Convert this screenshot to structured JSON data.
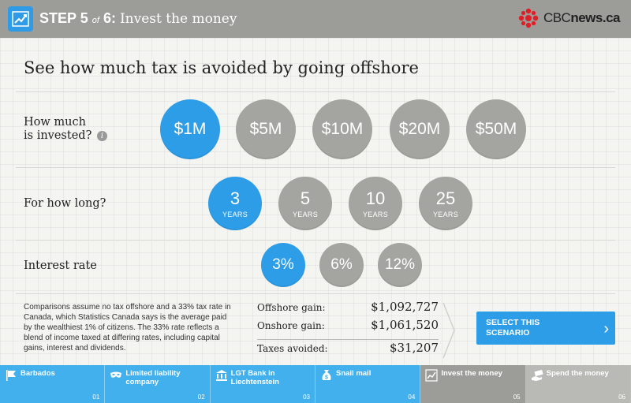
{
  "header": {
    "step_word": "STEP",
    "step_current": "5",
    "step_of": "of",
    "step_total": "6:",
    "step_desc": "Invest the money",
    "brand_bold": "CBC",
    "brand_rest": "news.ca"
  },
  "headline": "See how much tax is avoided by going offshore",
  "invested": {
    "label_line1": "How much",
    "label_line2": "is invested?",
    "info": "i",
    "options": [
      "$1M",
      "$5M",
      "$10M",
      "$20M",
      "$50M"
    ],
    "selected": "$1M"
  },
  "duration": {
    "label": "For how long?",
    "unit": "YEARS",
    "options": [
      "3",
      "5",
      "10",
      "25"
    ],
    "selected": "3"
  },
  "interest": {
    "label": "Interest rate",
    "options": [
      "3%",
      "6%",
      "12%"
    ],
    "selected": "3%"
  },
  "note": "Comparisons assume no tax offshore and a 33% tax rate in Canada, which Statistics Canada says is the average paid by the wealthiest 1% of citizens. The 33% rate reflects a blend of income taxed at differing rates, including capital gains, interest and dividends.",
  "results": {
    "offshore_label": "Offshore gain:",
    "offshore_value": "$1,092,727",
    "onshore_label": "Onshore gain:",
    "onshore_value": "$1,061,520",
    "avoided_label": "Taxes avoided:",
    "avoided_value": "$31,207"
  },
  "select_button": {
    "label": "SELECT THIS SCENARIO",
    "arrow": "›"
  },
  "nav": [
    {
      "label": "Barbados",
      "num": "01",
      "icon": "flag-icon"
    },
    {
      "label": "Limited liability company",
      "num": "02",
      "icon": "mask-icon"
    },
    {
      "label": "LGT Bank in Liechtenstein",
      "num": "03",
      "icon": "bank-icon"
    },
    {
      "label": "Snail mail",
      "num": "04",
      "icon": "money-bag-icon"
    },
    {
      "label": "Invest the money",
      "num": "05",
      "icon": "chart-icon"
    },
    {
      "label": "Spend the money",
      "num": "06",
      "icon": "money-hand-icon"
    }
  ],
  "colors": {
    "accent": "#2d9de8",
    "inactive": "#a4a5a0",
    "header_bg": "#9c9c98",
    "nav_blue": "#43b0ee"
  }
}
